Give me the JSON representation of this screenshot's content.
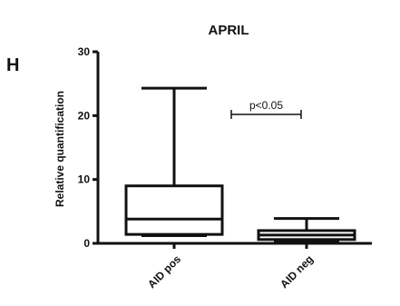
{
  "panel_label": "H",
  "chart_data": {
    "type": "box",
    "title": "APRIL",
    "xlabel": "",
    "ylabel": "Relative quantification",
    "ylim": [
      0,
      30
    ],
    "yticks": [
      0,
      10,
      20,
      30
    ],
    "categories": [
      "AID pos",
      "AID neg"
    ],
    "boxes": [
      {
        "category": "AID pos",
        "min": 1.2,
        "q1": 1.4,
        "median": 3.8,
        "q3": 9.0,
        "max": 24.3
      },
      {
        "category": "AID neg",
        "min": 0.3,
        "q1": 0.6,
        "median": 1.3,
        "q3": 2.0,
        "max": 3.9
      }
    ],
    "annotation": {
      "text": "p<0.05",
      "between": [
        "AID pos",
        "AID neg"
      ]
    },
    "grid": false,
    "legend": "none"
  }
}
